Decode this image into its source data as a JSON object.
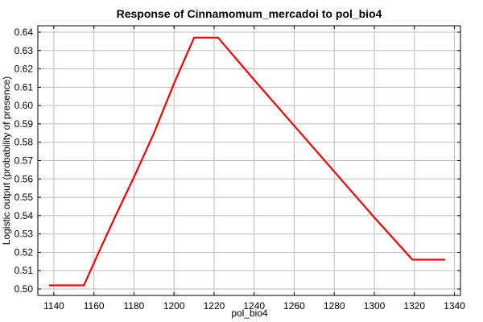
{
  "chart_data": {
    "type": "line",
    "title": "Response of Cinnamomum_mercadoi to pol_bio4",
    "xlabel": "pol_bio4",
    "ylabel": "Logistic output (probability of presence)",
    "xlim": [
      1132,
      1343
    ],
    "ylim": [
      0.4965,
      0.6435
    ],
    "x_ticks": [
      1140,
      1160,
      1180,
      1200,
      1220,
      1240,
      1260,
      1280,
      1300,
      1320,
      1340
    ],
    "y_ticks": [
      0.5,
      0.51,
      0.52,
      0.53,
      0.54,
      0.55,
      0.56,
      0.57,
      0.58,
      0.59,
      0.6,
      0.61,
      0.62,
      0.63,
      0.64
    ],
    "grid": true,
    "series": [
      {
        "color": "#ff0000",
        "x": [
          1138,
          1155,
          1162,
          1170,
          1180,
          1190,
          1200,
          1208,
          1210,
          1222,
          1240,
          1260,
          1280,
          1300,
          1319,
          1335
        ],
        "y": [
          0.502,
          0.502,
          0.519,
          0.538,
          0.561,
          0.585,
          0.612,
          0.632,
          0.637,
          0.637,
          0.614,
          0.589,
          0.564,
          0.539,
          0.516,
          0.516
        ]
      }
    ]
  }
}
